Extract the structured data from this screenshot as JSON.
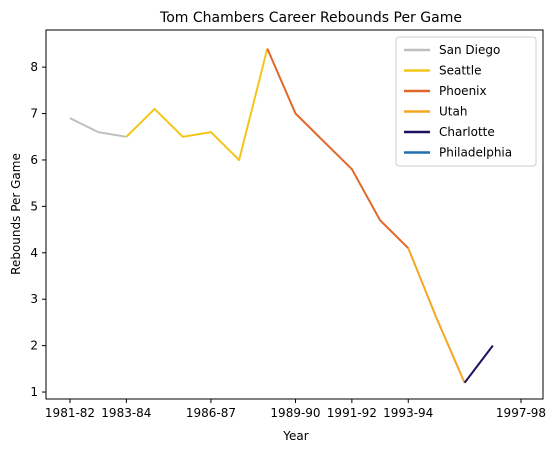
{
  "chart_data": {
    "type": "line",
    "title": "Tom Chambers  Career Rebounds Per Game",
    "xlabel": "Year",
    "ylabel": "Rebounds Per Game",
    "x": [
      "1981-82",
      "1982-83",
      "1983-84",
      "1984-85",
      "1985-86",
      "1986-87",
      "1987-88",
      "1988-89",
      "1989-90",
      "1990-91",
      "1991-92",
      "1992-93",
      "1993-94",
      "1994-95",
      "1995-96",
      "1996-97",
      "1997-98"
    ],
    "x_ticks": [
      "1981-82",
      "1983-84",
      "1986-87",
      "1989-90",
      "1991-92",
      "1993-94",
      "1997-98"
    ],
    "ylim": [
      0.85,
      8.8
    ],
    "y_ticks": [
      1,
      2,
      3,
      4,
      5,
      6,
      7,
      8
    ],
    "legend_position": "top-right",
    "grid": false,
    "series": [
      {
        "name": "San Diego",
        "color": "#bfbfbf",
        "points": [
          [
            0,
            6.9
          ],
          [
            1,
            6.6
          ],
          [
            2,
            6.5
          ]
        ]
      },
      {
        "name": "Seattle",
        "color": "#f5c518",
        "points": [
          [
            2,
            6.5
          ],
          [
            3,
            7.1
          ],
          [
            4,
            6.5
          ],
          [
            5,
            6.6
          ],
          [
            6,
            6.0
          ],
          [
            7,
            8.4
          ]
        ]
      },
      {
        "name": "Phoenix",
        "color": "#e1662a",
        "points": [
          [
            7,
            8.4
          ],
          [
            8,
            7.0
          ],
          [
            9,
            6.4
          ],
          [
            10,
            5.8
          ],
          [
            11,
            4.7
          ],
          [
            12,
            4.1
          ]
        ]
      },
      {
        "name": "Utah",
        "color": "#f5a623",
        "points": [
          [
            12,
            4.1
          ],
          [
            13,
            2.6
          ],
          [
            14,
            1.2
          ]
        ]
      },
      {
        "name": "Charlotte",
        "color": "#1d1160",
        "points": [
          [
            14,
            1.2
          ],
          [
            15,
            2.0
          ]
        ]
      },
      {
        "name": "Philadelphia",
        "color": "#1f6fb2",
        "points": []
      }
    ]
  }
}
